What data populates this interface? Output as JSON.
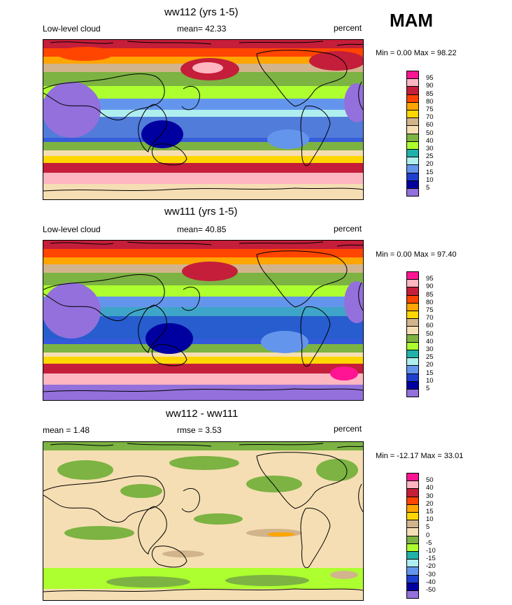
{
  "season": "MAM",
  "panels": [
    {
      "title": "ww112 (yrs 1-5)",
      "left_label": "Low-level cloud",
      "center_label": "mean=  42.33",
      "right_label": "percent",
      "minmax": "Min =   0.00 Max =  98.22"
    },
    {
      "title": "ww111 (yrs 1-5)",
      "left_label": "Low-level cloud",
      "center_label": "mean=  40.85",
      "right_label": "percent",
      "minmax": "Min =   0.00 Max =  97.40"
    },
    {
      "title": "ww112 - ww111",
      "left_label": "mean =   1.48",
      "center_label": "rmse =   3.53",
      "right_label": "percent",
      "minmax": "Min = -12.17 Max =  33.01"
    }
  ],
  "colorbars": {
    "cloud": {
      "levels": [
        "95",
        "90",
        "85",
        "80",
        "75",
        "70",
        "60",
        "50",
        "40",
        "30",
        "25",
        "20",
        "15",
        "10",
        "5"
      ],
      "colors": [
        "#ff1493",
        "#ffb6c1",
        "#c41e3a",
        "#ff4500",
        "#ffa500",
        "#ffd700",
        "#d2b48c",
        "#f5deb3",
        "#7cb342",
        "#adff2f",
        "#20b2aa",
        "#afeeee",
        "#6495ed",
        "#1e3fd0",
        "#0000a0",
        "#9370db"
      ]
    },
    "diff": {
      "levels": [
        "50",
        "40",
        "30",
        "20",
        "15",
        "10",
        "5",
        "0",
        "-5",
        "-10",
        "-15",
        "-20",
        "-30",
        "-40",
        "-50"
      ],
      "colors": [
        "#ff1493",
        "#ffb6c1",
        "#c41e3a",
        "#ff4500",
        "#ffa500",
        "#ffd700",
        "#d2b48c",
        "#f5deb3",
        "#7cb342",
        "#adff2f",
        "#20b2aa",
        "#afeeee",
        "#6495ed",
        "#1e3fd0",
        "#0000a0",
        "#9370db"
      ]
    }
  },
  "chart_data": [
    {
      "type": "heatmap",
      "title": "ww112 (yrs 1-5)",
      "variable": "Low-level cloud",
      "units": "percent",
      "mean": 42.33,
      "min": 0.0,
      "max": 98.22,
      "contour_levels": [
        5,
        10,
        15,
        20,
        25,
        30,
        40,
        50,
        60,
        70,
        75,
        80,
        85,
        90,
        95
      ]
    },
    {
      "type": "heatmap",
      "title": "ww111 (yrs 1-5)",
      "variable": "Low-level cloud",
      "units": "percent",
      "mean": 40.85,
      "min": 0.0,
      "max": 97.4,
      "contour_levels": [
        5,
        10,
        15,
        20,
        25,
        30,
        40,
        50,
        60,
        70,
        75,
        80,
        85,
        90,
        95
      ]
    },
    {
      "type": "heatmap",
      "title": "ww112 - ww111",
      "units": "percent",
      "mean": 1.48,
      "rmse": 3.53,
      "min": -12.17,
      "max": 33.01,
      "contour_levels": [
        -50,
        -40,
        -30,
        -20,
        -15,
        -10,
        -5,
        0,
        5,
        10,
        15,
        20,
        30,
        40,
        50
      ]
    }
  ]
}
